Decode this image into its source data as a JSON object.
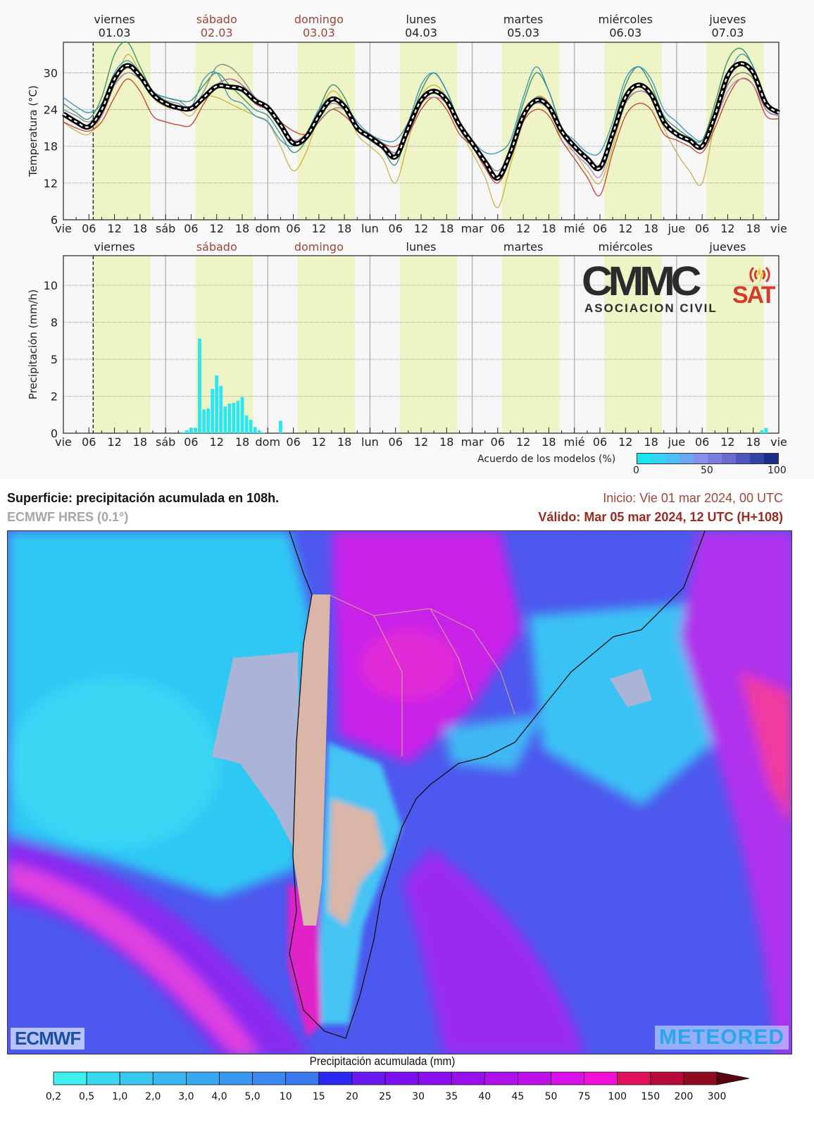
{
  "chart_data": [
    {
      "type": "line",
      "ylabel": "Temperatura (°C)",
      "ylim": [
        6,
        35
      ],
      "yticks": [
        6,
        12,
        18,
        24,
        30
      ],
      "grid": true,
      "x_hours_step": 3,
      "day_headers": [
        {
          "name": "viernes",
          "date": "01.03",
          "weekend": false
        },
        {
          "name": "sábado",
          "date": "02.03",
          "weekend": true
        },
        {
          "name": "domingo",
          "date": "03.03",
          "weekend": true
        },
        {
          "name": "lunes",
          "date": "04.03",
          "weekend": false
        },
        {
          "name": "martes",
          "date": "05.03",
          "weekend": false
        },
        {
          "name": "miércoles",
          "date": "06.03",
          "weekend": false
        },
        {
          "name": "jueves",
          "date": "07.03",
          "weekend": false
        }
      ],
      "mean": [
        23.3,
        22,
        21.2,
        24,
        29,
        31.2,
        29.5,
        26.5,
        25,
        24.3,
        24.2,
        26,
        27.8,
        27.7,
        27.3,
        25.5,
        24.3,
        21.5,
        18.5,
        19.5,
        23,
        25.7,
        24.5,
        21,
        19.5,
        18,
        16.3,
        21,
        25.5,
        27,
        25.5,
        21.5,
        18.5,
        15.5,
        12.8,
        17,
        23,
        25.5,
        24.5,
        20.5,
        18,
        16,
        14.5,
        20,
        26,
        28,
        26.5,
        22,
        20,
        19,
        18,
        23,
        29.5,
        31.5,
        30,
        25,
        23.5
      ],
      "members": [
        {
          "color": "#2e8b57",
          "values": [
            25,
            23.5,
            22.5,
            26,
            33,
            35,
            31,
            27,
            26,
            25.5,
            25.5,
            28,
            30,
            28,
            26,
            24,
            23,
            20,
            17,
            19,
            24,
            28,
            26,
            21,
            19,
            17.5,
            15,
            21,
            27,
            30,
            27,
            22,
            19,
            16,
            13,
            18,
            25,
            30,
            27,
            21,
            18,
            16,
            15,
            21,
            28,
            31,
            28,
            23,
            21,
            19.5,
            19,
            25,
            32,
            34,
            31,
            25,
            24
          ]
        },
        {
          "color": "#c9b037",
          "values": [
            22,
            20.5,
            20,
            23,
            28,
            33,
            30,
            26,
            24.5,
            24,
            23,
            26,
            26,
            25,
            24,
            23,
            22,
            18,
            14,
            17,
            23,
            27,
            25,
            20,
            18,
            16,
            12,
            19,
            26,
            28,
            26,
            21,
            17,
            13,
            8,
            15,
            22,
            26,
            25,
            19,
            17,
            14,
            12,
            18,
            25,
            27,
            26,
            21,
            17,
            14,
            12,
            22,
            28,
            30,
            29,
            24,
            23
          ]
        },
        {
          "color": "#c0392b",
          "values": [
            22,
            21,
            20.5,
            22,
            26,
            29,
            27,
            23,
            22,
            21.5,
            21.5,
            25,
            28,
            29,
            28,
            25,
            24,
            22,
            20.5,
            20,
            22,
            24,
            23,
            21,
            20,
            18.5,
            18,
            20,
            24,
            26,
            24,
            20,
            18,
            14.5,
            12,
            16,
            22,
            24,
            23,
            19,
            16,
            13,
            10,
            17,
            23,
            25,
            24,
            20,
            19,
            18,
            17,
            21,
            26,
            29,
            28,
            23,
            22.5
          ]
        },
        {
          "color": "#808080",
          "values": [
            24,
            23,
            22,
            24,
            28,
            30,
            29,
            27,
            25.5,
            25,
            24,
            27,
            31,
            31,
            29,
            26,
            24,
            21,
            19,
            19,
            22,
            24,
            24,
            21,
            20,
            18.5,
            17,
            20,
            25,
            27,
            25,
            21,
            19,
            16,
            14,
            17,
            23,
            26,
            25,
            21,
            18,
            16,
            15,
            20,
            25,
            27,
            26,
            22,
            20,
            19,
            18,
            22,
            28,
            30,
            29,
            24,
            23
          ]
        },
        {
          "color": "#2a8fbd",
          "values": [
            26,
            24.5,
            23.5,
            25,
            30,
            32,
            30,
            27,
            26,
            25.5,
            24.5,
            29,
            30,
            26,
            25,
            23,
            22,
            19,
            18,
            20,
            24,
            26,
            25,
            22,
            20,
            19,
            19,
            22,
            28,
            30,
            27,
            22,
            19,
            17,
            17,
            19,
            26,
            31,
            27,
            21,
            19,
            17,
            17,
            22,
            29,
            31,
            29,
            24,
            22,
            20,
            19,
            23,
            29,
            33,
            31,
            25,
            24
          ]
        },
        {
          "color": "#b07cc6",
          "values": [
            23,
            22,
            21,
            23,
            28,
            30,
            29,
            27,
            25,
            24.5,
            24,
            26,
            28,
            29,
            28,
            26,
            24,
            21,
            19,
            20,
            23,
            25,
            24,
            21,
            20,
            18,
            17,
            20,
            25,
            26,
            25,
            21,
            18,
            15,
            13,
            17,
            23,
            25,
            24,
            20,
            17,
            15,
            13,
            19,
            25,
            27,
            26,
            22,
            20,
            19,
            18,
            22,
            27,
            29,
            28,
            24,
            23
          ]
        }
      ]
    },
    {
      "type": "bar",
      "ylabel": "Precipitación (mm/h)",
      "ylim": [
        0,
        12
      ],
      "yticks": [
        0,
        2.5,
        5,
        7.5,
        10
      ],
      "ytick_labels": [
        "0",
        "2",
        "5",
        "8",
        "10"
      ],
      "grid": true,
      "day_headers": [
        {
          "name": "viernes",
          "weekend": false
        },
        {
          "name": "sábado",
          "weekend": true
        },
        {
          "name": "domingo",
          "weekend": true
        },
        {
          "name": "lunes",
          "weekend": false
        },
        {
          "name": "martes",
          "weekend": false
        },
        {
          "name": "miércoles",
          "weekend": false
        },
        {
          "name": "jueves",
          "weekend": false
        }
      ],
      "bars": [
        {
          "hour": 28,
          "value": 0.06
        },
        {
          "hour": 29,
          "value": 0.2
        },
        {
          "hour": 30,
          "value": 0.37
        },
        {
          "hour": 31,
          "value": 0.37
        },
        {
          "hour": 32,
          "value": 6.4
        },
        {
          "hour": 33,
          "value": 1.6
        },
        {
          "hour": 34,
          "value": 1.67
        },
        {
          "hour": 35,
          "value": 3.0
        },
        {
          "hour": 36,
          "value": 3.9
        },
        {
          "hour": 37,
          "value": 3.2
        },
        {
          "hour": 38,
          "value": 1.8
        },
        {
          "hour": 39,
          "value": 2.0
        },
        {
          "hour": 40,
          "value": 2.05
        },
        {
          "hour": 41,
          "value": 2.2
        },
        {
          "hour": 42,
          "value": 2.45
        },
        {
          "hour": 43,
          "value": 1.2
        },
        {
          "hour": 44,
          "value": 0.9
        },
        {
          "hour": 45,
          "value": 0.42
        },
        {
          "hour": 46,
          "value": 0.19
        },
        {
          "hour": 47,
          "value": 0.05
        },
        {
          "hour": 51,
          "value": 0.84
        },
        {
          "hour": 164,
          "value": 0.2
        },
        {
          "hour": 165,
          "value": 0.35
        }
      ],
      "bar_color": "#2ee6f0",
      "agreement_legend": {
        "label": "Acuerdo de los modelos (%)",
        "tick_labels": [
          "0",
          "50",
          "100"
        ],
        "colors": [
          "#19e6f0",
          "#33d4f5",
          "#4cc0f5",
          "#6aa8f3",
          "#8890ee",
          "#7b7ee0",
          "#6a6ad0",
          "#4c55c0",
          "#3344a8",
          "#1a2c8c"
        ]
      }
    }
  ],
  "axis": {
    "day_abbrevs": [
      "vie",
      "sáb",
      "dom",
      "lun",
      "mar",
      "mié",
      "jue",
      "vie"
    ],
    "hour_labels": [
      "06",
      "12",
      "18"
    ],
    "daylight_hours": [
      7,
      20.5
    ],
    "forecast_start_hour": 7
  },
  "colors": {
    "weekday": "#222222",
    "weekend": "#a0443a",
    "daylight": "#eef4c6",
    "plot_bg": "#f7f7f7"
  },
  "logo": {
    "line1": "CMMC",
    "line2": "SAT",
    "line3": "ASOCIACION CIVIL"
  },
  "map": {
    "title": "Superficie: precipitación acumulada en 108h.",
    "model": "ECMWF HRES (0.1°)",
    "start": "Inicio: Vie 01 mar 2024, 00 UTC",
    "valid": "Válido: Mar 05 mar 2024, 12 UTC (H+108)",
    "logo_left": "ECMWF",
    "logo_right": "METEORED",
    "colorbar": {
      "title": "Precipitación acumulada (mm)",
      "labels": [
        "0,2",
        "0,5",
        "1,0",
        "2,0",
        "3,0",
        "4,0",
        "5,0",
        "10",
        "15",
        "20",
        "25",
        "30",
        "35",
        "40",
        "45",
        "50",
        "75",
        "100",
        "150",
        "200",
        "300"
      ],
      "colors": [
        "#40f0f0",
        "#3ad8f0",
        "#38c8f0",
        "#38b8f0",
        "#38a8f0",
        "#3898f0",
        "#3a88f0",
        "#3a78f0",
        "#2a2af0",
        "#6a1af0",
        "#7a10f0",
        "#8a10ee",
        "#9a10ec",
        "#b010ec",
        "#c010ea",
        "#d810ea",
        "#f010d8",
        "#e0105a",
        "#b80a3a",
        "#900a20"
      ],
      "extend_color": "#5a0010"
    }
  }
}
